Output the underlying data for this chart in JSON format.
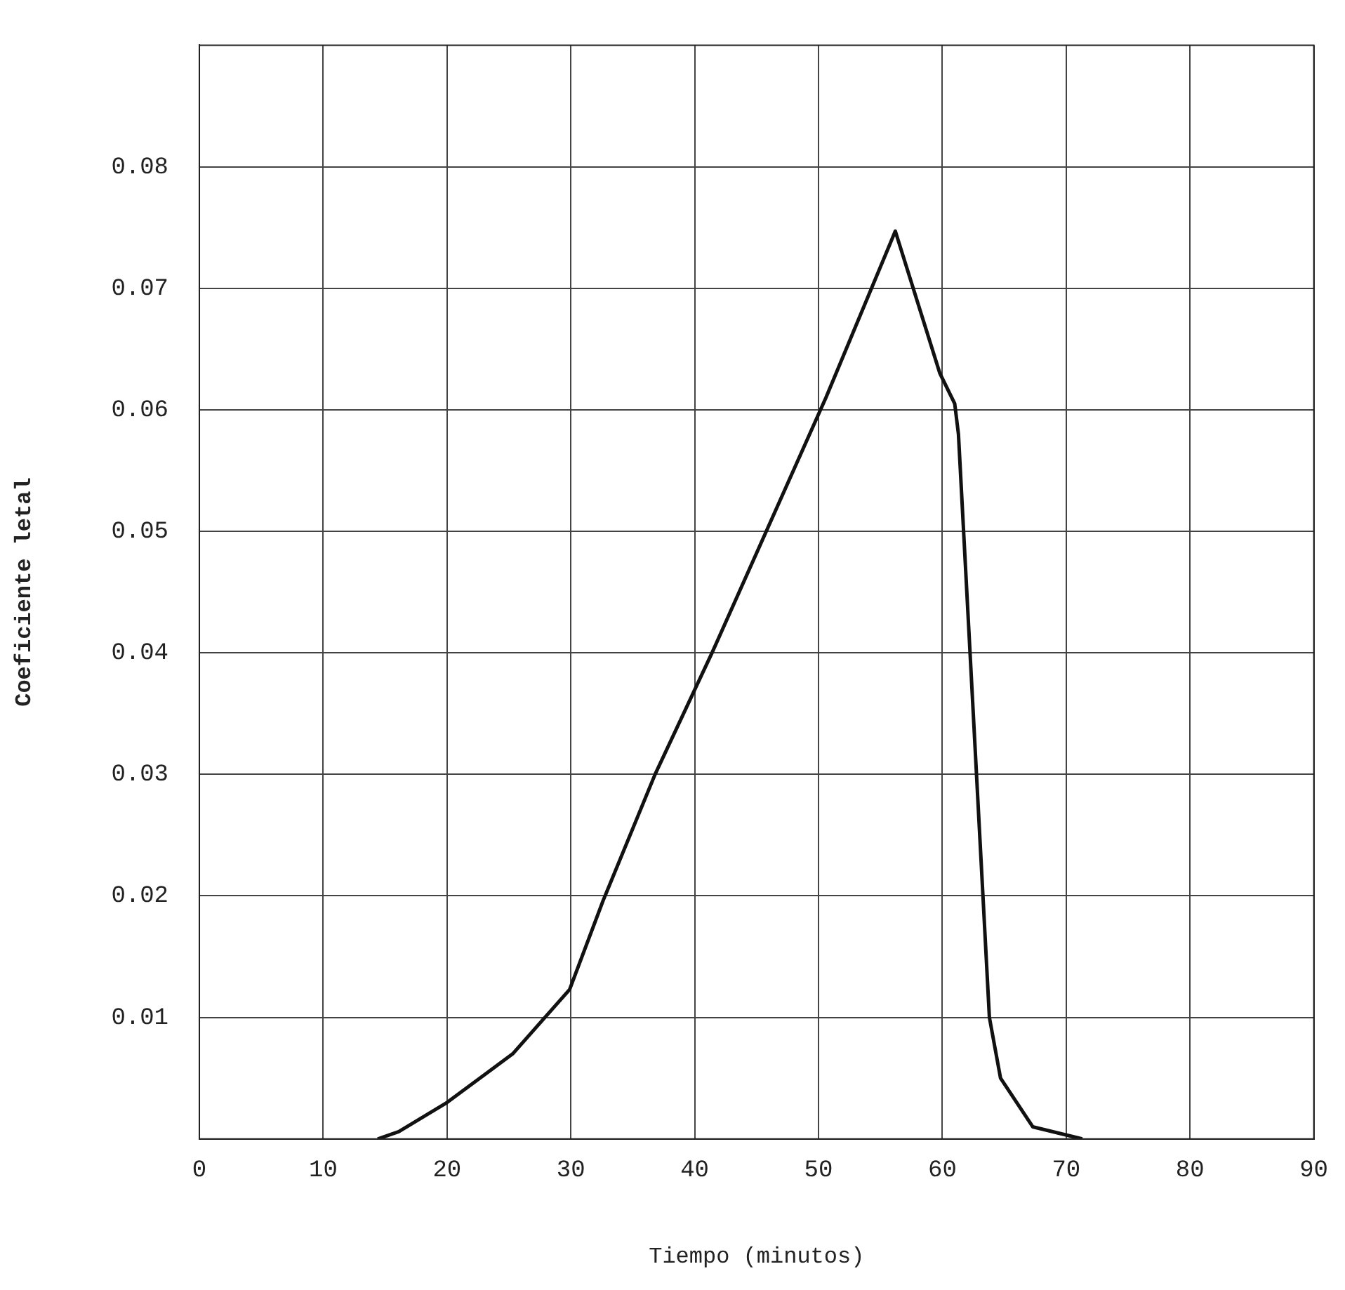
{
  "chart_data": {
    "type": "line",
    "xlabel": "Tiempo (minutos)",
    "ylabel": "Coeficiente letal",
    "x": [
      14.4,
      16.1,
      20,
      25.3,
      29.9,
      32.6,
      36.8,
      41.4,
      50.6,
      56.2,
      59.8,
      61.0,
      61.3,
      63.8,
      64.7,
      67.3,
      71.3
    ],
    "series": [
      {
        "color": "#111111",
        "values": [
          0,
          0.0006,
          0.003,
          0.007,
          0.0123,
          0.0196,
          0.03,
          0.04,
          0.061,
          0.0747,
          0.063,
          0.0605,
          0.058,
          0.01,
          0.005,
          0.001,
          0
        ]
      }
    ],
    "xlim": [
      0,
      90
    ],
    "xticks": [
      0,
      10,
      20,
      30,
      40,
      50,
      60,
      70,
      80,
      90
    ],
    "ylim": [
      0,
      0.09
    ],
    "yticks": [
      0.01,
      0.02,
      0.03,
      0.04,
      0.05,
      0.06,
      0.07,
      0.08
    ],
    "grid": true,
    "legend": false,
    "marker": "none",
    "line_style": "solid"
  }
}
